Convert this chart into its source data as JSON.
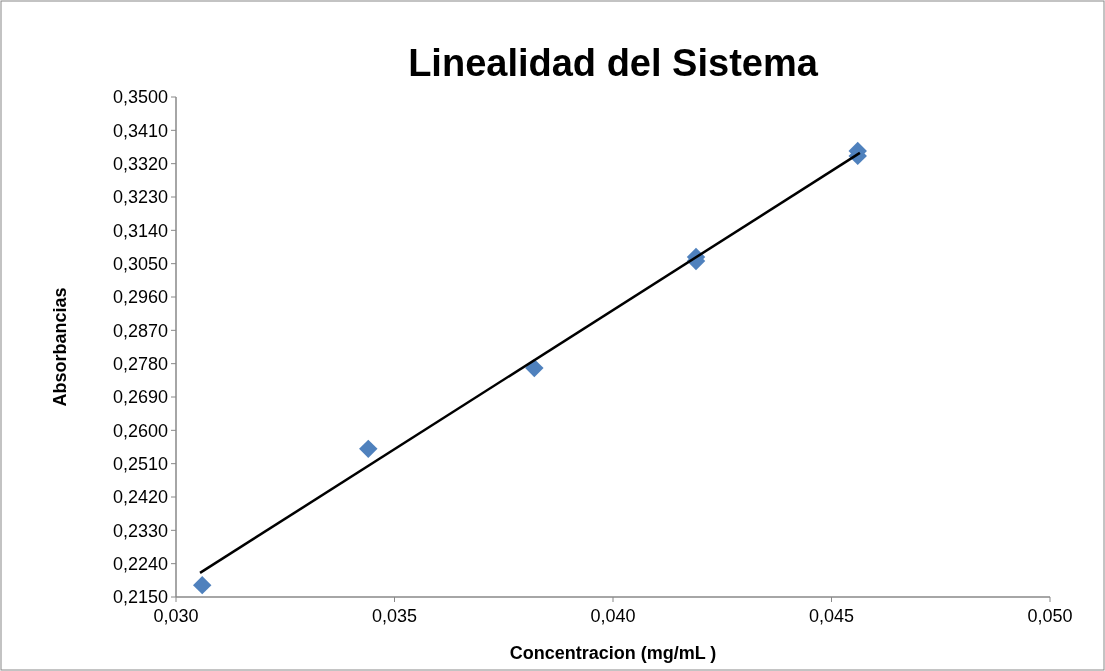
{
  "chart_data": {
    "type": "scatter",
    "title": "Linealidad del Sistema",
    "xlabel": "Concentracion (mg/mL )",
    "ylabel": "Absorbancias",
    "xlim": [
      0.03,
      0.05
    ],
    "xticks": [
      {
        "value": 0.03,
        "label": "0,030"
      },
      {
        "value": 0.035,
        "label": "0,035"
      },
      {
        "value": 0.04,
        "label": "0,040"
      },
      {
        "value": 0.045,
        "label": "0,045"
      },
      {
        "value": 0.05,
        "label": "0,050"
      }
    ],
    "ylim": [
      0.215,
      0.35
    ],
    "yticks": [
      {
        "value": 0.215,
        "label": "0,2150"
      },
      {
        "value": 0.224,
        "label": "0,2240"
      },
      {
        "value": 0.233,
        "label": "0,2330"
      },
      {
        "value": 0.242,
        "label": "0,2420"
      },
      {
        "value": 0.251,
        "label": "0,2510"
      },
      {
        "value": 0.26,
        "label": "0,2600"
      },
      {
        "value": 0.269,
        "label": "0,2690"
      },
      {
        "value": 0.278,
        "label": "0,2780"
      },
      {
        "value": 0.287,
        "label": "0,2870"
      },
      {
        "value": 0.296,
        "label": "0,2960"
      },
      {
        "value": 0.305,
        "label": "0,3050"
      },
      {
        "value": 0.314,
        "label": "0,3140"
      },
      {
        "value": 0.323,
        "label": "0,3230"
      },
      {
        "value": 0.332,
        "label": "0,3320"
      },
      {
        "value": 0.341,
        "label": "0,3410"
      },
      {
        "value": 0.35,
        "label": "0,3500"
      }
    ],
    "grid": false,
    "marker": "diamond",
    "series": [
      {
        "color": "#4f81bd",
        "x": [
          0.0306,
          0.0344,
          0.0382,
          0.0419,
          0.0419,
          0.0456,
          0.0456
        ],
        "values": [
          0.2182,
          0.255,
          0.2768,
          0.3068,
          0.3057,
          0.3354,
          0.3341
        ]
      },
      {
        "type": "line",
        "color": "#000000",
        "marker": "none",
        "x": [
          0.03055,
          0.04565
        ],
        "values": [
          0.2215,
          0.3349
        ]
      }
    ]
  }
}
